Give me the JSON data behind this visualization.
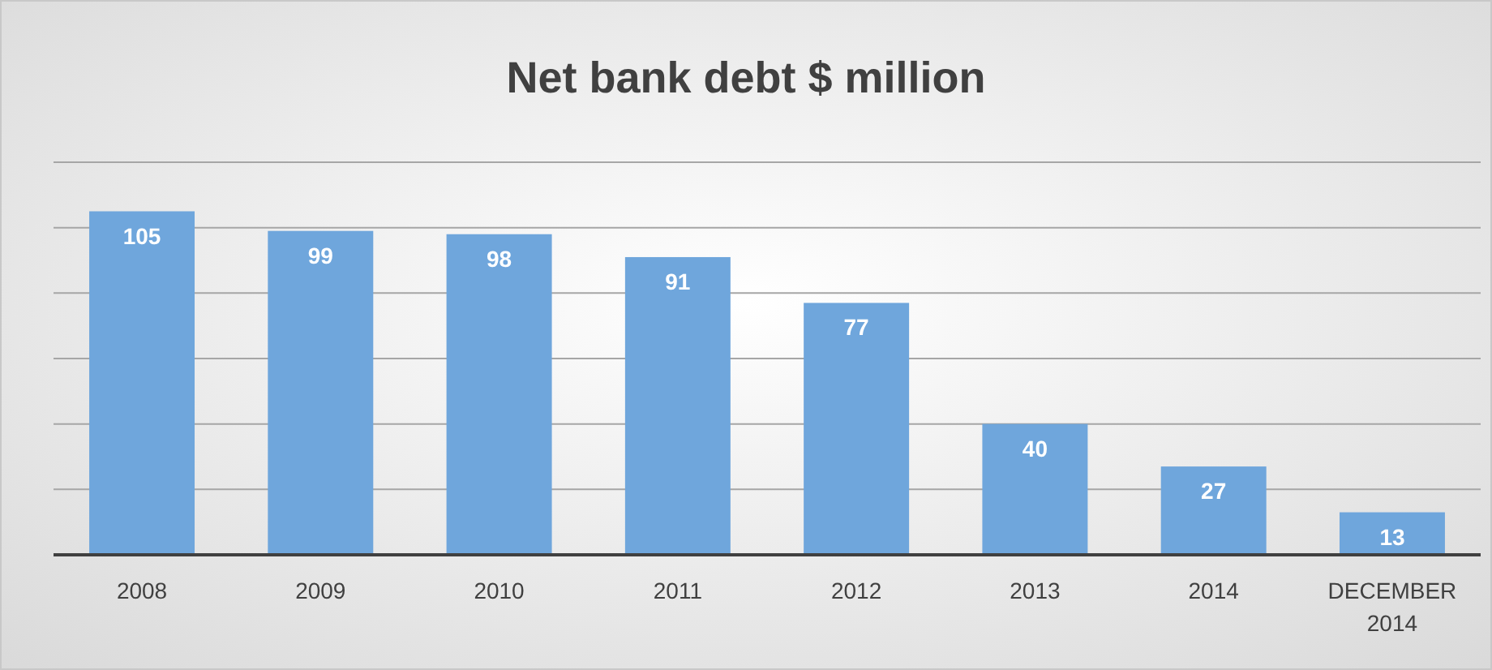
{
  "chart_data": {
    "type": "bar",
    "title": "Net bank debt $ million",
    "categories": [
      "2008",
      "2009",
      "2010",
      "2011",
      "2012",
      "2013",
      "2014",
      "DECEMBER 2014"
    ],
    "values": [
      105,
      99,
      98,
      91,
      77,
      40,
      27,
      13
    ],
    "color": "#6fa6dc",
    "ylim": [
      0,
      120
    ],
    "yticks": [
      {
        "value": 0,
        "label": null
      },
      {
        "value": 20,
        "label": null
      },
      {
        "value": 40,
        "label": null
      },
      {
        "value": 60,
        "label": null
      },
      {
        "value": 80,
        "label": null
      },
      {
        "value": 100,
        "label": null
      },
      {
        "value": 120,
        "label": null
      }
    ],
    "grid": "y",
    "tick_labels": "x",
    "data_labels": true
  }
}
